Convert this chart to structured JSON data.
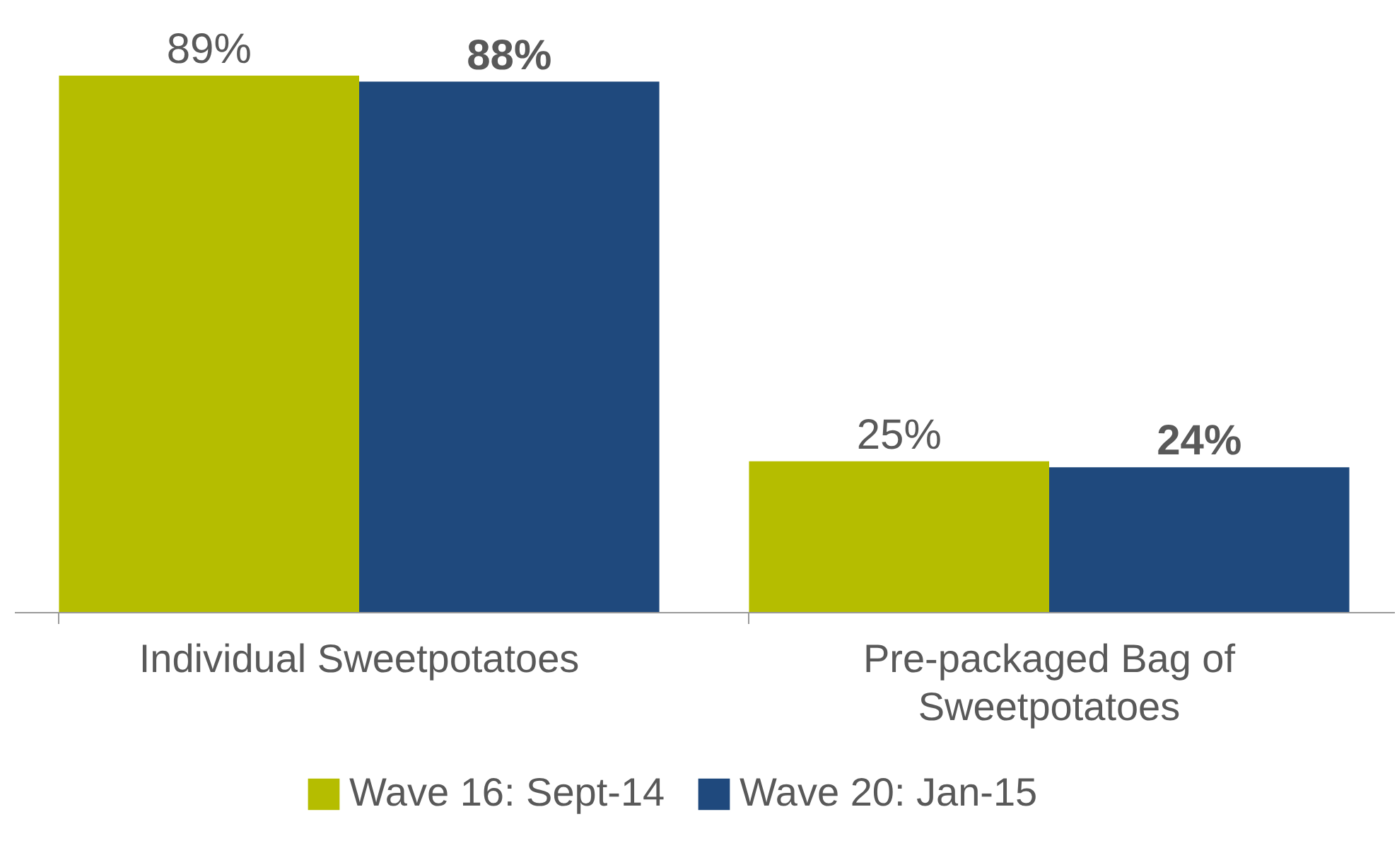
{
  "chart_data": {
    "type": "bar",
    "categories": [
      "Individual Sweetpotatoes",
      "Pre-packaged Bag of Sweetpotatoes"
    ],
    "series": [
      {
        "name": "Wave 16: Sept-14",
        "color": "#b5bd00",
        "values": [
          89,
          25
        ],
        "value_labels": [
          "89%",
          "25%"
        ]
      },
      {
        "name": "Wave 20: Jan-15",
        "color": "#1f497d",
        "values": [
          88,
          24
        ],
        "value_labels": [
          "88%",
          "24%"
        ]
      }
    ],
    "legend": "bottom",
    "grid": false
  }
}
